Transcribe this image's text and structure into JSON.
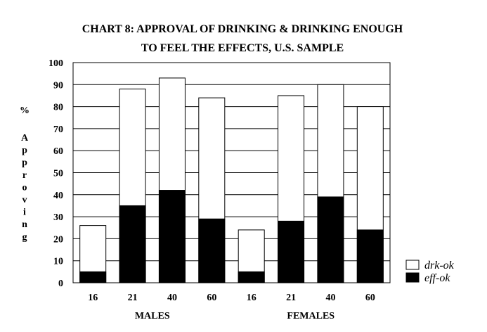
{
  "chart_data": {
    "type": "bar",
    "title": [
      "CHART 8:  APPROVAL OF DRINKING & DRINKING ENOUGH",
      "TO FEEL THE EFFECTS, U.S. SAMPLE"
    ],
    "ylabel_unit": "%",
    "ylabel": "Approving",
    "ylim": [
      0,
      100
    ],
    "yticks": [
      0,
      10,
      20,
      30,
      40,
      50,
      60,
      70,
      80,
      90,
      100
    ],
    "grid": true,
    "stacked": false,
    "legend_position": "bottom-right",
    "categories": [
      "16",
      "21",
      "40",
      "60",
      "16",
      "21",
      "40",
      "60"
    ],
    "groups": [
      {
        "label": "MALES",
        "start": 0,
        "end": 3
      },
      {
        "label": "FEMALES",
        "start": 4,
        "end": 7
      }
    ],
    "series": [
      {
        "name": "drk-ok",
        "color": "#ffffff",
        "values": [
          26,
          88,
          93,
          84,
          24,
          85,
          90,
          80
        ]
      },
      {
        "name": "eff-ok",
        "color": "#000000",
        "values": [
          5,
          35,
          42,
          29,
          5,
          28,
          39,
          24
        ]
      }
    ]
  }
}
